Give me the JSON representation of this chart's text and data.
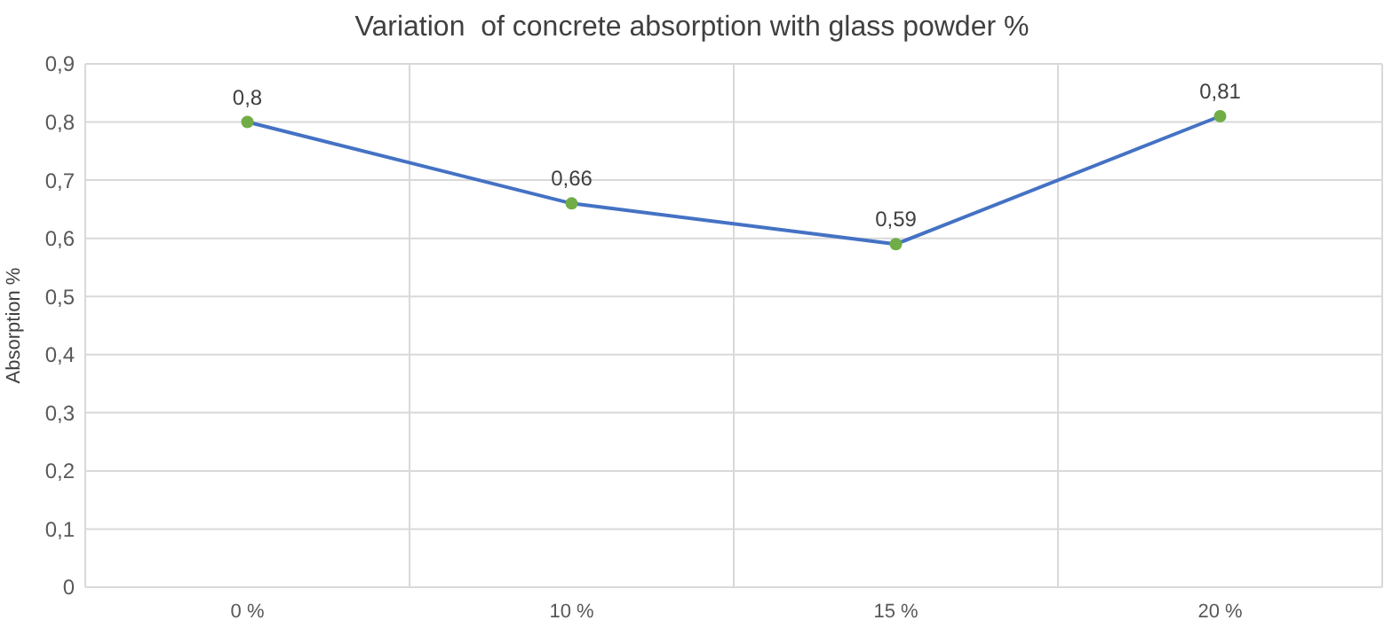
{
  "chart_data": {
    "type": "line",
    "title": "Variation  of concrete absorption with glass powder %",
    "ylabel": "Absorption %",
    "categories": [
      "0 %",
      "10 %",
      "15 %",
      "20 %"
    ],
    "series": [
      {
        "color": "#4472c4",
        "colors": [
          "#70ad47",
          "#70ad47",
          "#70ad47",
          "#70ad47"
        ],
        "values": [
          0.8,
          0.66,
          0.59,
          0.81
        ],
        "value_labels": [
          "0,8",
          "0,66",
          "0,59",
          "0,81"
        ]
      }
    ],
    "ylim": [
      0,
      0.9
    ],
    "yticks": [
      0,
      {
        "value": 0.1,
        "label": "0,1"
      },
      {
        "value": 0.2,
        "label": "0,2"
      },
      {
        "value": 0.3,
        "label": "0,3"
      },
      {
        "value": 0.4,
        "label": "0,4"
      },
      {
        "value": 0.5,
        "label": "0,5"
      },
      {
        "value": 0.6,
        "label": "0,6"
      },
      {
        "value": 0.7,
        "label": "0,7"
      },
      {
        "value": 0.8,
        "label": "0,8"
      },
      {
        "value": 0.9,
        "label": "0,9"
      }
    ],
    "grid": true,
    "marker": "circle",
    "line_style": "solid"
  }
}
